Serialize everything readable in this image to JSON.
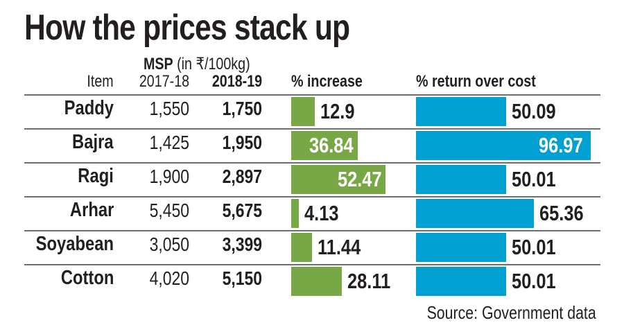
{
  "title": "How the prices stack up",
  "headers": {
    "msp": "MSP",
    "msp_unit": "(in ₹/100kg)",
    "item": "Item",
    "y1": "2017-18",
    "y2": "2018-19",
    "increase": "% increase",
    "return": "% return over cost"
  },
  "colors": {
    "increase_bar": "#77a845",
    "return_bar": "#00a0d2"
  },
  "chart_data": {
    "type": "table",
    "columns": [
      "Item",
      "2017-18",
      "2018-19",
      "% increase",
      "% return over cost"
    ],
    "rows": [
      {
        "item": "Paddy",
        "msp_2017_18": "1,550",
        "msp_2018_19": "1,750",
        "increase": 12.9,
        "increase_label": "12.9",
        "return": 50.09,
        "return_label": "50.09"
      },
      {
        "item": "Bajra",
        "msp_2017_18": "1,425",
        "msp_2018_19": "1,950",
        "increase": 36.84,
        "increase_label": "36.84",
        "return": 96.97,
        "return_label": "96.97"
      },
      {
        "item": "Ragi",
        "msp_2017_18": "1,900",
        "msp_2018_19": "2,897",
        "increase": 52.47,
        "increase_label": "52.47",
        "return": 50.01,
        "return_label": "50.01"
      },
      {
        "item": "Arhar",
        "msp_2017_18": "5,450",
        "msp_2018_19": "5,675",
        "increase": 4.13,
        "increase_label": "4.13",
        "return": 65.36,
        "return_label": "65.36"
      },
      {
        "item": "Soyabean",
        "msp_2017_18": "3,050",
        "msp_2018_19": "3,399",
        "increase": 11.44,
        "increase_label": "11.44",
        "return": 50.01,
        "return_label": "50.01"
      },
      {
        "item": "Cotton",
        "msp_2017_18": "4,020",
        "msp_2018_19": "5,150",
        "increase": 28.11,
        "increase_label": "28.11",
        "return": 50.01,
        "return_label": "50.01"
      }
    ]
  },
  "source": "Source: Government data"
}
